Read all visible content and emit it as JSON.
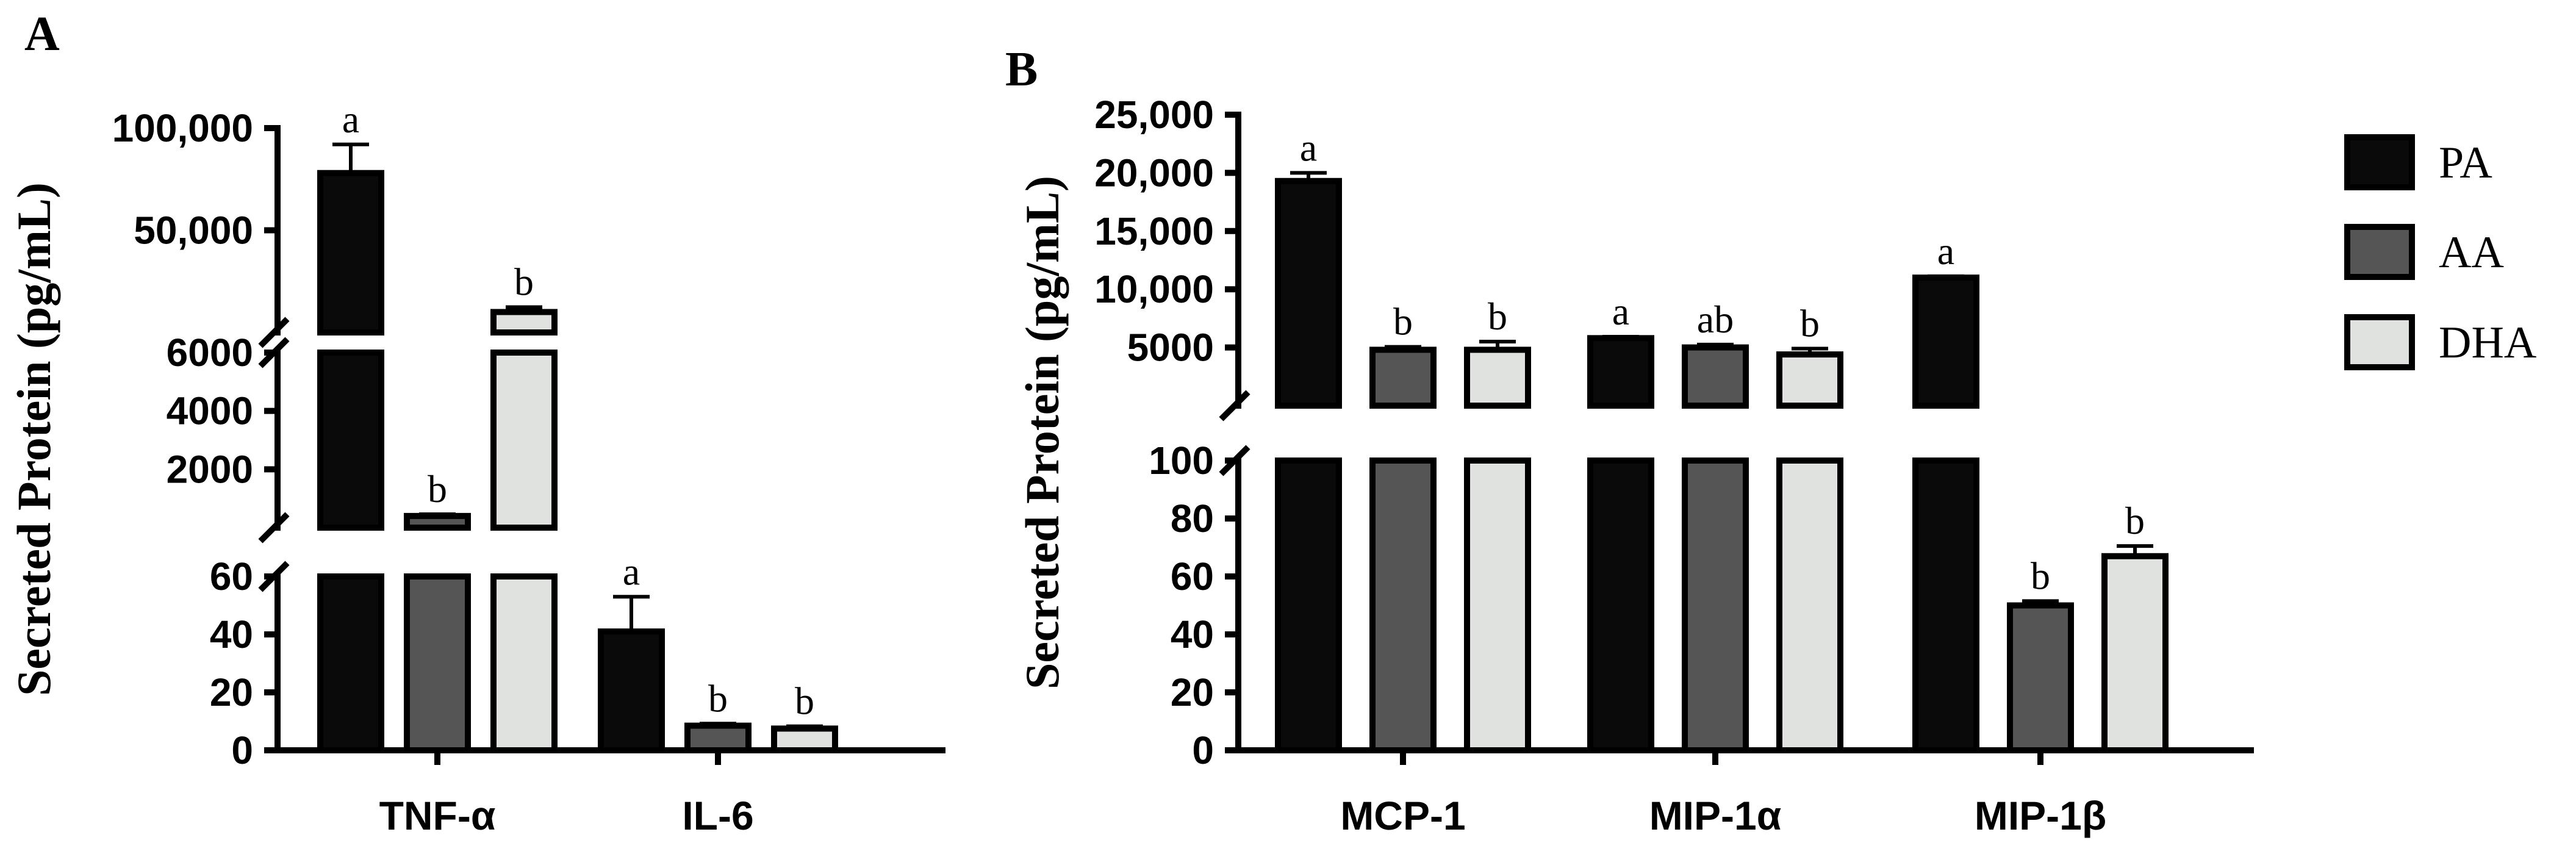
{
  "chart_data": [
    {
      "type": "bar",
      "panel": "A",
      "ylabel": "Secreted Protein (pg/mL)",
      "categories": [
        "TNF-α",
        "IL-6"
      ],
      "series": [
        {
          "name": "PA",
          "color": "#0a0a0a",
          "values": [
            78000,
            41
          ],
          "errors": [
            14000,
            12
          ],
          "sig": [
            "a",
            "a"
          ]
        },
        {
          "name": "AA",
          "color": "#555555",
          "values": [
            400,
            8.5
          ],
          "errors": [
            60,
            0.7
          ],
          "sig": [
            "b",
            "b"
          ]
        },
        {
          "name": "DHA",
          "color": "#e0e2e0",
          "values": [
            10000,
            7.5
          ],
          "errors": [
            2400,
            0.8
          ],
          "sig": [
            "b",
            "b"
          ]
        }
      ],
      "segments": [
        {
          "range": [
            0,
            60
          ],
          "ticks": [
            0,
            20,
            40,
            60
          ],
          "tick_labels": [
            "0",
            "20",
            "40",
            "60"
          ]
        },
        {
          "range": [
            0,
            6000
          ],
          "ticks": [
            2000,
            4000,
            6000
          ],
          "tick_labels": [
            "2000",
            "4000",
            "6000"
          ]
        },
        {
          "range": [
            0,
            100000
          ],
          "ticks": [
            50000,
            100000
          ],
          "tick_labels": [
            "50,000",
            "100,000"
          ]
        }
      ]
    },
    {
      "type": "bar",
      "panel": "B",
      "ylabel": "Secreted Protein (pg/mL)",
      "categories": [
        "MCP-1",
        "MIP-1α",
        "MIP-1β"
      ],
      "series": [
        {
          "name": "PA",
          "color": "#0a0a0a",
          "values": [
            19300,
            5800,
            11000
          ],
          "errors": [
            700,
            120,
            120
          ],
          "sig": [
            "a",
            "a",
            "a"
          ]
        },
        {
          "name": "AA",
          "color": "#555555",
          "values": [
            4800,
            5000,
            50
          ],
          "errors": [
            250,
            250,
            1.5
          ],
          "sig": [
            "b",
            "ab",
            "b"
          ]
        },
        {
          "name": "DHA",
          "color": "#e0e2e0",
          "values": [
            4800,
            4400,
            67
          ],
          "errors": [
            700,
            500,
            3.5
          ],
          "sig": [
            "b",
            "b",
            "b"
          ]
        }
      ],
      "segments": [
        {
          "range": [
            0,
            100
          ],
          "ticks": [
            0,
            20,
            40,
            60,
            80,
            100
          ],
          "tick_labels": [
            "0",
            "20",
            "40",
            "60",
            "80",
            "100"
          ]
        },
        {
          "range": [
            0,
            25000
          ],
          "ticks": [
            5000,
            10000,
            15000,
            20000,
            25000
          ],
          "tick_labels": [
            "5000",
            "10,000",
            "15,000",
            "20,000",
            "25,000"
          ]
        }
      ]
    }
  ],
  "legend": [
    {
      "label": "PA",
      "color": "#0a0a0a"
    },
    {
      "label": "AA",
      "color": "#555555"
    },
    {
      "label": "DHA",
      "color": "#e0e2e0"
    }
  ],
  "panel_labels": {
    "a": "A",
    "b": "B"
  }
}
